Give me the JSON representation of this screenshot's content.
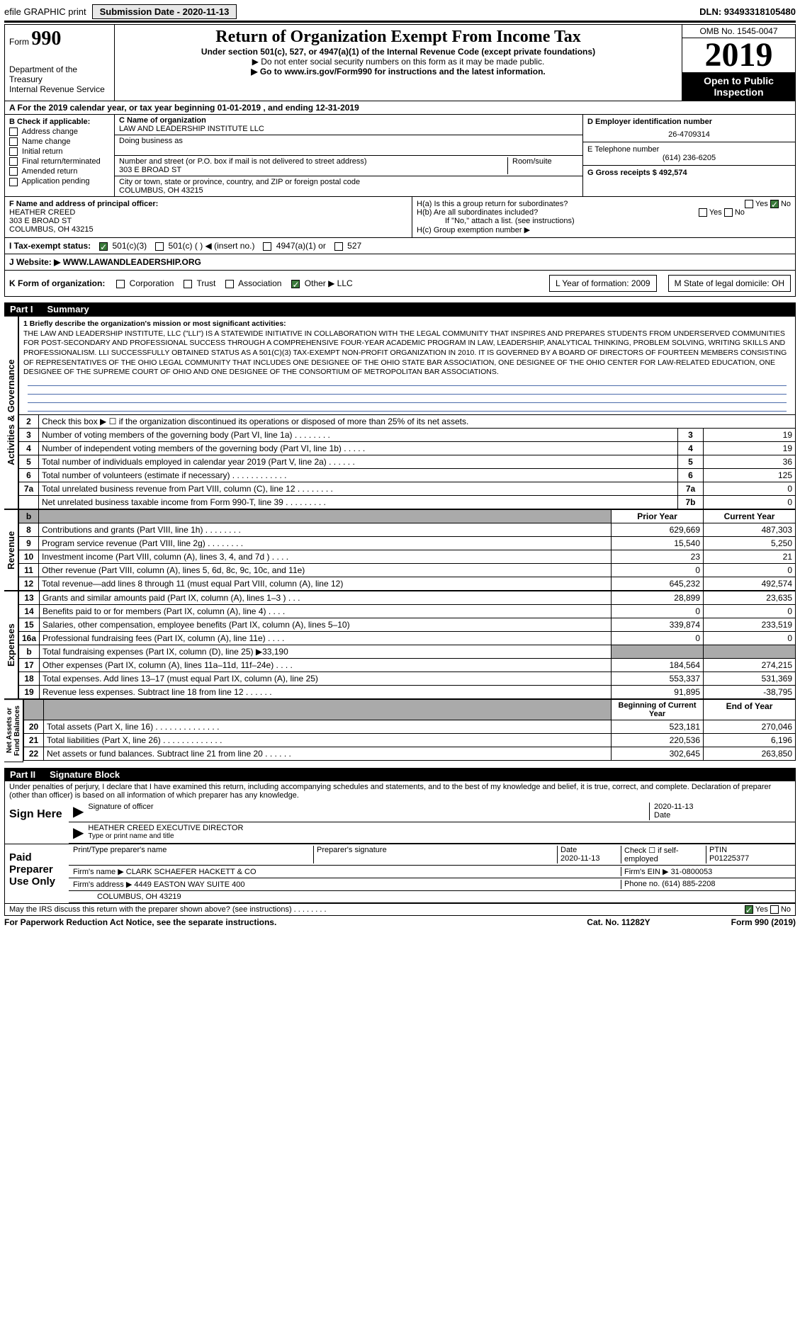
{
  "topbar": {
    "efile": "efile GRAPHIC print",
    "submission_label": "Submission Date - 2020-11-13",
    "dln": "DLN: 93493318105480"
  },
  "header": {
    "form_prefix": "Form",
    "form_number": "990",
    "dept": "Department of the Treasury",
    "irs": "Internal Revenue Service",
    "title": "Return of Organization Exempt From Income Tax",
    "subtitle": "Under section 501(c), 527, or 4947(a)(1) of the Internal Revenue Code (except private foundations)",
    "note1": "▶ Do not enter social security numbers on this form as it may be made public.",
    "note2": "▶ Go to www.irs.gov/Form990 for instructions and the latest information.",
    "omb": "OMB No. 1545-0047",
    "year": "2019",
    "inspection": "Open to Public Inspection"
  },
  "calendar": "A   For the 2019 calendar year, or tax year beginning 01-01-2019   , and ending 12-31-2019",
  "entity": {
    "b_label": "B Check if applicable:",
    "checks": [
      "Address change",
      "Name change",
      "Initial return",
      "Final return/terminated",
      "Amended return",
      "Application pending"
    ],
    "c_label": "C Name of organization",
    "org_name": "LAW AND LEADERSHIP INSTITUTE LLC",
    "dba_label": "Doing business as",
    "addr_label": "Number and street (or P.O. box if mail is not delivered to street address)",
    "room_label": "Room/suite",
    "addr": "303 E BROAD ST",
    "city_label": "City or town, state or province, country, and ZIP or foreign postal code",
    "city": "COLUMBUS, OH  43215",
    "d_label": "D Employer identification number",
    "ein": "26-4709314",
    "e_label": "E Telephone number",
    "phone": "(614) 236-6205",
    "g_label": "G Gross receipts $ 492,574"
  },
  "officer": {
    "f_label": "F  Name and address of principal officer:",
    "name": "HEATHER CREED",
    "addr": "303 E BROAD ST",
    "city": "COLUMBUS, OH  43215"
  },
  "h": {
    "ha": "H(a)  Is this a group return for subordinates?",
    "hb": "H(b)  Are all subordinates included?",
    "hb_note": "If \"No,\" attach a list. (see instructions)",
    "hc": "H(c)  Group exemption number ▶"
  },
  "tax_status": {
    "label": "I   Tax-exempt status:",
    "opt1": "501(c)(3)",
    "opt2": "501(c) (  ) ◀ (insert no.)",
    "opt3": "4947(a)(1) or",
    "opt4": "527"
  },
  "website": {
    "label": "J   Website: ▶",
    "value": "WWW.LAWANDLEADERSHIP.ORG"
  },
  "k_row": {
    "label": "K Form of organization:",
    "opts": [
      "Corporation",
      "Trust",
      "Association",
      "Other ▶ LLC"
    ],
    "l": "L Year of formation: 2009",
    "m": "M State of legal domicile: OH"
  },
  "part1": {
    "label": "Part I",
    "title": "Summary"
  },
  "mission": {
    "line1": "1  Briefly describe the organization's mission or most significant activities:",
    "text": "THE LAW AND LEADERSHIP INSTITUTE, LLC (\"LLI\") IS A STATEWIDE INITIATIVE IN COLLABORATION WITH THE LEGAL COMMUNITY THAT INSPIRES AND PREPARES STUDENTS FROM UNDERSERVED COMMUNITIES FOR POST-SECONDARY AND PROFESSIONAL SUCCESS THROUGH A COMPREHENSIVE FOUR-YEAR ACADEMIC PROGRAM IN LAW, LEADERSHIP, ANALYTICAL THINKING, PROBLEM SOLVING, WRITING SKILLS AND PROFESSIONALISM. LLI SUCCESSFULLY OBTAINED STATUS AS A 501(C)(3) TAX-EXEMPT NON-PROFIT ORGANIZATION IN 2010. IT IS GOVERNED BY A BOARD OF DIRECTORS OF FOURTEEN MEMBERS CONSISTING OF REPRESENTATIVES OF THE OHIO LEGAL COMMUNITY THAT INCLUDES ONE DESIGNEE OF THE OHIO STATE BAR ASSOCIATION, ONE DESIGNEE OF THE OHIO CENTER FOR LAW-RELATED EDUCATION, ONE DESIGNEE OF THE SUPREME COURT OF OHIO AND ONE DESIGNEE OF THE CONSORTIUM OF METROPOLITAN BAR ASSOCIATIONS."
  },
  "gov_lines": [
    {
      "n": "2",
      "text": "Check this box ▶ ☐ if the organization discontinued its operations or disposed of more than 25% of its net assets.",
      "ln": "",
      "v": ""
    },
    {
      "n": "3",
      "text": "Number of voting members of the governing body (Part VI, line 1a)  .   .   .   .   .   .   .   .",
      "ln": "3",
      "v": "19"
    },
    {
      "n": "4",
      "text": "Number of independent voting members of the governing body (Part VI, line 1b)  .   .   .   .   .",
      "ln": "4",
      "v": "19"
    },
    {
      "n": "5",
      "text": "Total number of individuals employed in calendar year 2019 (Part V, line 2a)  .   .   .   .   .   .",
      "ln": "5",
      "v": "36"
    },
    {
      "n": "6",
      "text": "Total number of volunteers (estimate if necessary)  .   .   .   .   .   .   .   .   .   .   .   .",
      "ln": "6",
      "v": "125"
    },
    {
      "n": "7a",
      "text": "Total unrelated business revenue from Part VIII, column (C), line 12  .   .   .   .   .   .   .   .",
      "ln": "7a",
      "v": "0"
    },
    {
      "n": "",
      "text": "Net unrelated business taxable income from Form 990-T, line 39  .   .   .   .   .   .   .   .   .",
      "ln": "7b",
      "v": "0"
    }
  ],
  "col_headers": {
    "prior": "Prior Year",
    "current": "Current Year"
  },
  "revenue": [
    {
      "n": "8",
      "text": "Contributions and grants (Part VIII, line 1h)  .   .   .   .   .   .   .   .",
      "p": "629,669",
      "c": "487,303"
    },
    {
      "n": "9",
      "text": "Program service revenue (Part VIII, line 2g)  .   .   .   .   .   .   .   .",
      "p": "15,540",
      "c": "5,250"
    },
    {
      "n": "10",
      "text": "Investment income (Part VIII, column (A), lines 3, 4, and 7d )  .   .   .   .",
      "p": "23",
      "c": "21"
    },
    {
      "n": "11",
      "text": "Other revenue (Part VIII, column (A), lines 5, 6d, 8c, 9c, 10c, and 11e)",
      "p": "0",
      "c": "0"
    },
    {
      "n": "12",
      "text": "Total revenue—add lines 8 through 11 (must equal Part VIII, column (A), line 12)",
      "p": "645,232",
      "c": "492,574"
    }
  ],
  "expenses": [
    {
      "n": "13",
      "text": "Grants and similar amounts paid (Part IX, column (A), lines 1–3 )  .   .   .",
      "p": "28,899",
      "c": "23,635"
    },
    {
      "n": "14",
      "text": "Benefits paid to or for members (Part IX, column (A), line 4)  .   .   .   .",
      "p": "0",
      "c": "0"
    },
    {
      "n": "15",
      "text": "Salaries, other compensation, employee benefits (Part IX, column (A), lines 5–10)",
      "p": "339,874",
      "c": "233,519"
    },
    {
      "n": "16a",
      "text": "Professional fundraising fees (Part IX, column (A), line 11e)  .   .   .   .",
      "p": "0",
      "c": "0"
    },
    {
      "n": "b",
      "text": "Total fundraising expenses (Part IX, column (D), line 25) ▶33,190",
      "p": "",
      "c": "",
      "grey": true
    },
    {
      "n": "17",
      "text": "Other expenses (Part IX, column (A), lines 11a–11d, 11f–24e)  .   .   .   .",
      "p": "184,564",
      "c": "274,215"
    },
    {
      "n": "18",
      "text": "Total expenses. Add lines 13–17 (must equal Part IX, column (A), line 25)",
      "p": "553,337",
      "c": "531,369"
    },
    {
      "n": "19",
      "text": "Revenue less expenses. Subtract line 18 from line 12  .   .   .   .   .   .",
      "p": "91,895",
      "c": "-38,795"
    }
  ],
  "net_headers": {
    "begin": "Beginning of Current Year",
    "end": "End of Year"
  },
  "net": [
    {
      "n": "20",
      "text": "Total assets (Part X, line 16)  .   .   .   .   .   .   .   .   .   .   .   .   .   .",
      "p": "523,181",
      "c": "270,046"
    },
    {
      "n": "21",
      "text": "Total liabilities (Part X, line 26)  .   .   .   .   .   .   .   .   .   .   .   .   .",
      "p": "220,536",
      "c": "6,196"
    },
    {
      "n": "22",
      "text": "Net assets or fund balances. Subtract line 21 from line 20  .   .   .   .   .   .",
      "p": "302,645",
      "c": "263,850"
    }
  ],
  "part2": {
    "label": "Part II",
    "title": "Signature Block"
  },
  "sig_intro": "Under penalties of perjury, I declare that I have examined this return, including accompanying schedules and statements, and to the best of my knowledge and belief, it is true, correct, and complete. Declaration of preparer (other than officer) is based on all information of which preparer has any knowledge.",
  "sign_here": "Sign Here",
  "sig_officer": "Signature of officer",
  "sig_date_label": "Date",
  "sig_date": "2020-11-13",
  "sig_name": "HEATHER CREED  EXECUTIVE DIRECTOR",
  "sig_type": "Type or print name and title",
  "paid": {
    "label": "Paid Preparer Use Only",
    "col1": "Print/Type preparer's name",
    "col2": "Preparer's signature",
    "col3": "Date",
    "date": "2020-11-13",
    "col4": "Check ☐ if self-employed",
    "col5": "PTIN",
    "ptin": "P01225377",
    "firm_label": "Firm's name   ▶",
    "firm": "CLARK SCHAEFER HACKETT & CO",
    "ein_label": "Firm's EIN ▶",
    "ein": "31-0800053",
    "addr_label": "Firm's address ▶",
    "addr": "4449 EASTON WAY SUITE 400",
    "city": "COLUMBUS, OH  43219",
    "phone_label": "Phone no.",
    "phone": "(614) 885-2208"
  },
  "discuss": "May the IRS discuss this return with the preparer shown above? (see instructions)  .   .   .   .   .   .   .   .",
  "footer": {
    "left": "For Paperwork Reduction Act Notice, see the separate instructions.",
    "mid": "Cat. No. 11282Y",
    "right": "Form 990 (2019)"
  }
}
